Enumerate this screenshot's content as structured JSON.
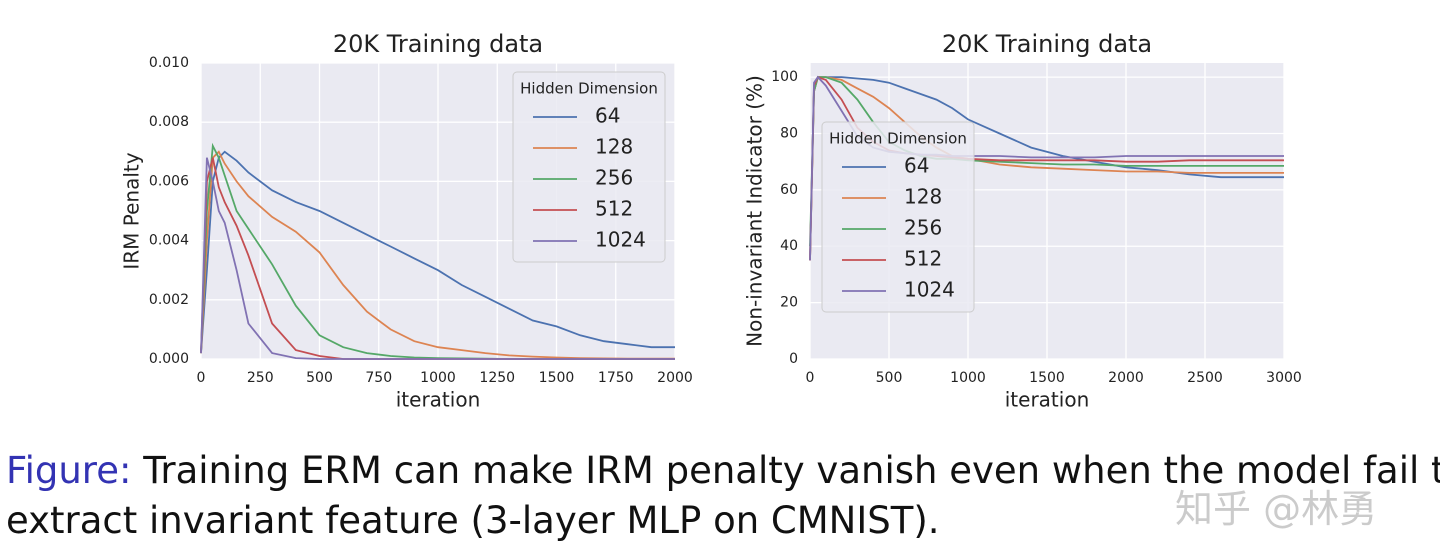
{
  "chart_data": [
    {
      "type": "line",
      "title": "20K Training data",
      "x_label": "iteration",
      "y_label": "IRM Penalty",
      "x": [
        0,
        25,
        50,
        75,
        100,
        150,
        200,
        300,
        400,
        500,
        600,
        700,
        800,
        900,
        1000,
        1100,
        1200,
        1300,
        1400,
        1500,
        1600,
        1700,
        1800,
        1900,
        2000
      ],
      "series": [
        {
          "name": "64",
          "color": "#4c72b0",
          "values": [
            0.0002,
            0.003,
            0.006,
            0.0068,
            0.007,
            0.0067,
            0.0063,
            0.0057,
            0.0053,
            0.005,
            0.0046,
            0.0042,
            0.0038,
            0.0034,
            0.003,
            0.0025,
            0.0021,
            0.0017,
            0.0013,
            0.0011,
            0.0008,
            0.0006,
            0.0005,
            0.0004,
            0.0004
          ]
        },
        {
          "name": "128",
          "color": "#dd8452",
          "values": [
            0.0002,
            0.004,
            0.0068,
            0.007,
            0.0066,
            0.006,
            0.0055,
            0.0048,
            0.0043,
            0.0036,
            0.0025,
            0.0016,
            0.001,
            0.0006,
            0.0004,
            0.0003,
            0.0002,
            0.00012,
            8e-05,
            5e-05,
            3e-05,
            2e-05,
            1e-05,
            1e-05,
            1e-05
          ]
        },
        {
          "name": "256",
          "color": "#55a868",
          "values": [
            0.0002,
            0.005,
            0.0072,
            0.0068,
            0.0062,
            0.005,
            0.0044,
            0.0032,
            0.0018,
            0.0008,
            0.0004,
            0.0002,
            0.0001,
            5e-05,
            3e-05,
            2e-05,
            1e-05,
            0,
            0,
            0,
            0,
            0,
            0,
            0,
            0
          ]
        },
        {
          "name": "512",
          "color": "#c44e52",
          "values": [
            0.0002,
            0.006,
            0.0068,
            0.0058,
            0.0053,
            0.0045,
            0.0035,
            0.0012,
            0.0003,
            0.0001,
            0,
            0,
            0,
            0,
            0,
            0,
            0,
            0,
            0,
            0,
            0,
            0,
            0,
            0,
            0
          ]
        },
        {
          "name": "1024",
          "color": "#8172b3",
          "values": [
            0.0002,
            0.0068,
            0.006,
            0.005,
            0.0046,
            0.003,
            0.0012,
            0.0002,
            3e-05,
            0,
            0,
            0,
            0,
            0,
            0,
            0,
            0,
            0,
            0,
            0,
            0,
            0,
            0,
            0,
            0
          ]
        }
      ],
      "legend_title": "Hidden Dimension",
      "legend": "upper right",
      "grid": true,
      "xlim": [
        0,
        2000
      ],
      "xticks": [
        0,
        250,
        500,
        750,
        1000,
        1250,
        1500,
        1750,
        2000
      ],
      "ylim": [
        0,
        0.01
      ],
      "yticks": [
        {
          "value": 0,
          "label": "0.000"
        },
        {
          "value": 0.002,
          "label": "0.002"
        },
        {
          "value": 0.004,
          "label": "0.004"
        },
        {
          "value": 0.006,
          "label": "0.006"
        },
        {
          "value": 0.008,
          "label": "0.008"
        },
        {
          "value": 0.01,
          "label": "0.010"
        }
      ]
    },
    {
      "type": "line",
      "title": "20K Training data",
      "x_label": "iteration",
      "y_label": "Non-invariant Indicator (%)",
      "x": [
        0,
        25,
        50,
        100,
        200,
        300,
        400,
        500,
        600,
        700,
        800,
        900,
        1000,
        1200,
        1400,
        1600,
        1800,
        2000,
        2200,
        2400,
        2600,
        2800,
        3000
      ],
      "series": [
        {
          "name": "64",
          "color": "#4c72b0",
          "values": [
            35,
            95,
            100,
            100,
            100,
            99.5,
            99,
            98,
            96,
            94,
            92,
            89,
            85,
            80,
            75,
            72,
            70,
            68,
            67,
            65.5,
            64.5,
            64.5,
            64.5
          ]
        },
        {
          "name": "128",
          "color": "#dd8452",
          "values": [
            35,
            95,
            100,
            100,
            99,
            96,
            93,
            89,
            84,
            79,
            75,
            72,
            71,
            69,
            68,
            67.5,
            67,
            66.5,
            66.5,
            66,
            66,
            66,
            66
          ]
        },
        {
          "name": "256",
          "color": "#55a868",
          "values": [
            40,
            95,
            100,
            100,
            98,
            92,
            84,
            77,
            74,
            72,
            71,
            71,
            70.5,
            70,
            69.5,
            69,
            69,
            68.5,
            68.5,
            68.5,
            68.5,
            68.5,
            68.5
          ]
        },
        {
          "name": "512",
          "color": "#c44e52",
          "values": [
            35,
            97,
            100,
            99,
            92,
            82,
            77,
            74,
            73,
            72.5,
            72,
            71.5,
            71,
            70.5,
            70.5,
            70.5,
            70.5,
            70,
            70,
            70.5,
            70.5,
            70.5,
            70.5
          ]
        },
        {
          "name": "1024",
          "color": "#8172b3",
          "values": [
            35,
            98,
            100,
            97,
            88,
            79,
            75,
            73.5,
            73,
            72.5,
            72.5,
            72,
            72,
            72,
            71.5,
            71.5,
            71.5,
            72,
            72,
            72,
            72,
            72,
            72
          ]
        }
      ],
      "legend_title": "Hidden Dimension",
      "legend": "center left",
      "grid": true,
      "xlim": [
        0,
        3000
      ],
      "xticks": [
        0,
        500,
        1000,
        1500,
        2000,
        2500,
        3000
      ],
      "ylim": [
        0,
        105
      ],
      "yticks": [
        0,
        20,
        40,
        60,
        80,
        100
      ]
    }
  ],
  "caption": {
    "label": "Figure:",
    "lines": [
      "Training ERM can make IRM penalty vanish even when the model fail to",
      "extract invariant feature (3-layer MLP on CMNIST)."
    ]
  },
  "watermark": "知乎 @林勇"
}
